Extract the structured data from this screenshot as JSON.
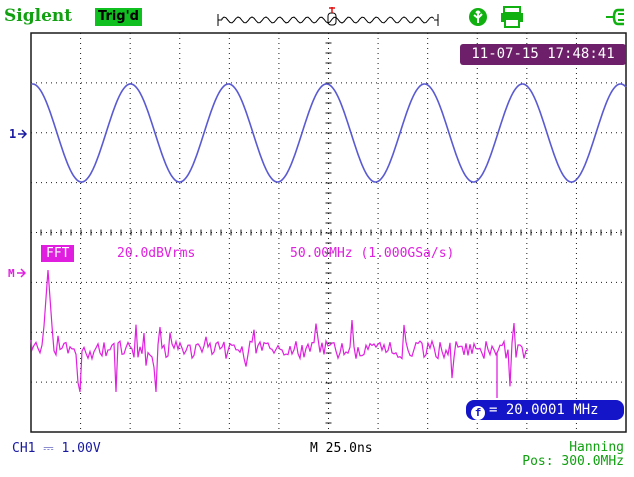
{
  "header": {
    "brand": "Siglent",
    "trigger_status": "Trig'd",
    "usb_icon": "usb-icon",
    "printer_icon": "printer-icon",
    "power_icon": "plug-icon"
  },
  "datetime": "11-07-15 17:48:41",
  "channel1": {
    "marker": "1",
    "scale_label": "CH1 ⎓ 1.00V",
    "color": "#5a5ad2"
  },
  "fft": {
    "label": "FFT",
    "marker": "M",
    "scale": "20.0dBVrms",
    "span": "50.00MHz (1.000GSa/s)",
    "window": "Hanning",
    "position": "Pos: 300.0MHz",
    "color": "#e020e0"
  },
  "timebase": "M 25.0ns",
  "cursor_readout": "= 20.0001 MHz",
  "cursor_icon": "frequency-icon",
  "colors": {
    "grid": "#1a1a1a",
    "brand": "#10a010",
    "trig_badge": "#10c020",
    "datetime_bg": "#6e1f6a",
    "freq_box_bg": "#1414c8"
  }
}
